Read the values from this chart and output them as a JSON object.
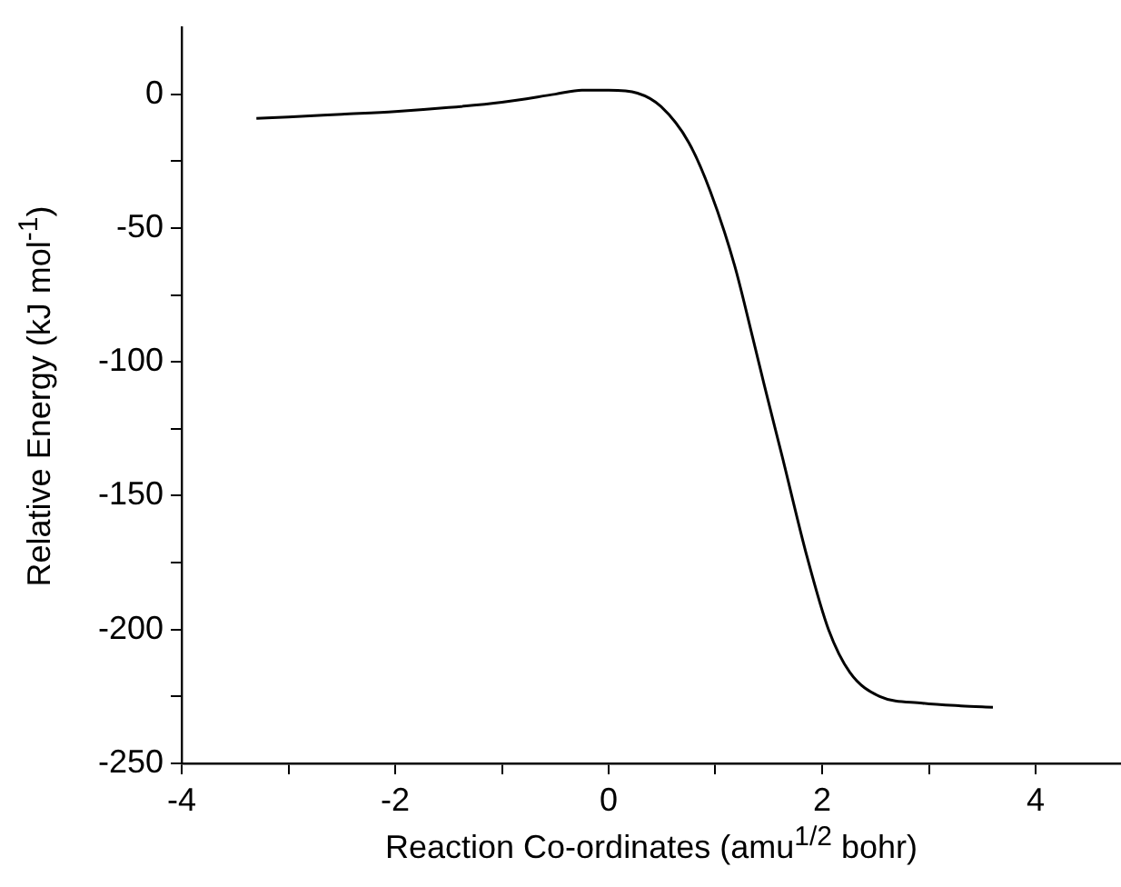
{
  "chart_data": {
    "type": "line",
    "xlabel": "Reaction Co-ordinates (amu$^{1/2}$ bohr)",
    "ylabel": "Relative Energy (kJ mol$^{-1}$)",
    "x": [
      -3.3,
      -3,
      -2.5,
      -2,
      -1.5,
      -1,
      -0.5,
      -0.25,
      0,
      0.27,
      0.49,
      0.75,
      0.95,
      1.18,
      1.35,
      1.46,
      1.63,
      1.86,
      2.06,
      2.26,
      2.54,
      2.94,
      3.3,
      3.6
    ],
    "series": [
      {
        "color": "#000000",
        "values": [
          -9,
          -8.5,
          -7.5,
          -6.5,
          -5,
          -3,
          0,
          1.5,
          1.5,
          0.4,
          -4.6,
          -18,
          -36,
          -64,
          -91,
          -109,
          -136,
          -173,
          -200,
          -216,
          -225,
          -227.5,
          -228.5,
          -229
        ]
      }
    ],
    "xlim": [
      -4,
      4.8
    ],
    "ylim": [
      -250,
      25
    ],
    "xticks": [
      -4,
      {
        "value": -3,
        "label": null
      },
      -2,
      {
        "value": -1,
        "label": null
      },
      0,
      {
        "value": 1,
        "label": null
      },
      2,
      {
        "value": 3,
        "label": null
      },
      4
    ],
    "yticks": [
      -250,
      {
        "value": -225,
        "label": null
      },
      -200,
      {
        "value": -175,
        "label": null
      },
      -150,
      {
        "value": -125,
        "label": null
      },
      -100,
      {
        "value": -75,
        "label": null
      },
      -50,
      {
        "value": -25,
        "label": null
      },
      0
    ],
    "grid": false,
    "legend": false,
    "marker": "none",
    "line_style": "solid"
  }
}
